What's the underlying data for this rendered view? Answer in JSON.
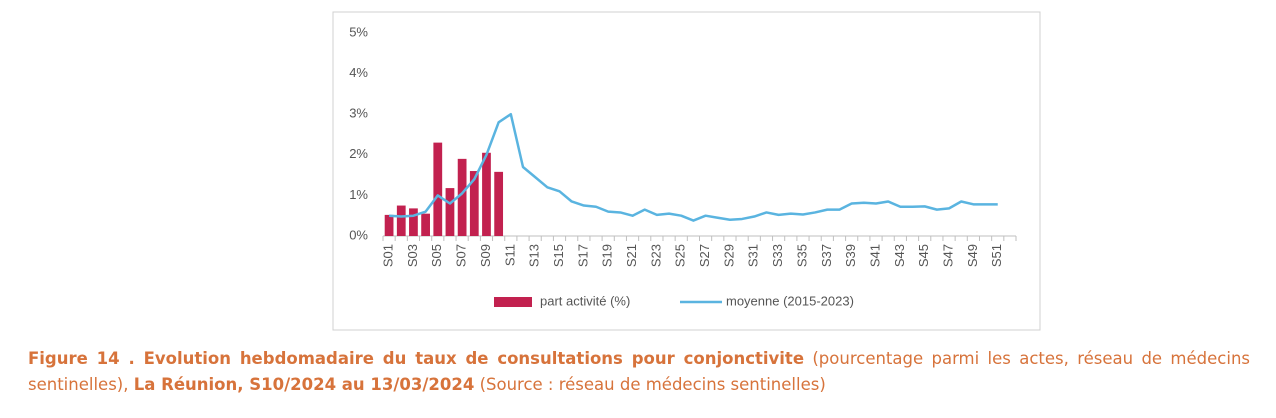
{
  "chart_data": {
    "type": "bar_line",
    "categories": [
      "S01",
      null,
      "S03",
      null,
      "S05",
      null,
      "S07",
      null,
      "S09",
      null,
      "S11",
      null,
      "S13",
      null,
      "S15",
      null,
      "S17",
      null,
      "S19",
      null,
      "S21",
      null,
      "S23",
      null,
      "S25",
      null,
      "S27",
      null,
      "S29",
      null,
      "S31",
      null,
      "S33",
      null,
      "S35",
      null,
      "S37",
      null,
      "S39",
      null,
      "S41",
      null,
      "S43",
      null,
      "S45",
      null,
      "S47",
      null,
      "S49",
      null,
      "S51",
      null
    ],
    "series": [
      {
        "name": "part activité (%)",
        "type": "bar",
        "color": "#c2214f",
        "values": [
          0.52,
          0.75,
          0.68,
          0.55,
          2.3,
          1.18,
          1.9,
          1.6,
          2.05,
          1.58,
          null,
          null,
          null,
          null,
          null,
          null,
          null,
          null,
          null,
          null,
          null,
          null,
          null,
          null,
          null,
          null,
          null,
          null,
          null,
          null,
          null,
          null,
          null,
          null,
          null,
          null,
          null,
          null,
          null,
          null,
          null,
          null,
          null,
          null,
          null,
          null,
          null,
          null,
          null,
          null,
          null,
          null
        ]
      },
      {
        "name": "moyenne (2015-2023)",
        "type": "line",
        "color": "#5ab4e0",
        "values": [
          0.5,
          0.48,
          0.5,
          0.6,
          1.0,
          0.8,
          1.05,
          1.4,
          2.0,
          2.8,
          3.0,
          1.7,
          1.45,
          1.2,
          1.1,
          0.85,
          0.75,
          0.72,
          0.6,
          0.58,
          0.5,
          0.65,
          0.52,
          0.55,
          0.5,
          0.38,
          0.5,
          0.45,
          0.4,
          0.42,
          0.48,
          0.58,
          0.52,
          0.55,
          0.53,
          0.58,
          0.65,
          0.65,
          0.8,
          0.82,
          0.8,
          0.85,
          0.72,
          0.72,
          0.73,
          0.65,
          0.68,
          0.85,
          0.78,
          0.78,
          0.78,
          null
        ]
      }
    ],
    "ylim": [
      0,
      5
    ],
    "yticks": [
      {
        "value": 0,
        "label": "0%"
      },
      {
        "value": 1,
        "label": "1%"
      },
      {
        "value": 2,
        "label": "2%"
      },
      {
        "value": 3,
        "label": "3%"
      },
      {
        "value": 4,
        "label": "4%"
      },
      {
        "value": 5,
        "label": "5%"
      }
    ],
    "legend": "bottom",
    "caption": [
      {
        "text": "Figure 14 . Evolution hebdomadaire du taux de consultations pour conjonctivite",
        "bold": true
      },
      {
        "text": " (pourcentage parmi les actes, réseau de médecins sentinelles), ",
        "bold": false
      },
      {
        "text": "La Réunion, S10/2024 au 13/03/2024",
        "bold": true
      },
      {
        "text": " (Source : réseau de médecins sentinelles)",
        "bold": false
      }
    ]
  }
}
